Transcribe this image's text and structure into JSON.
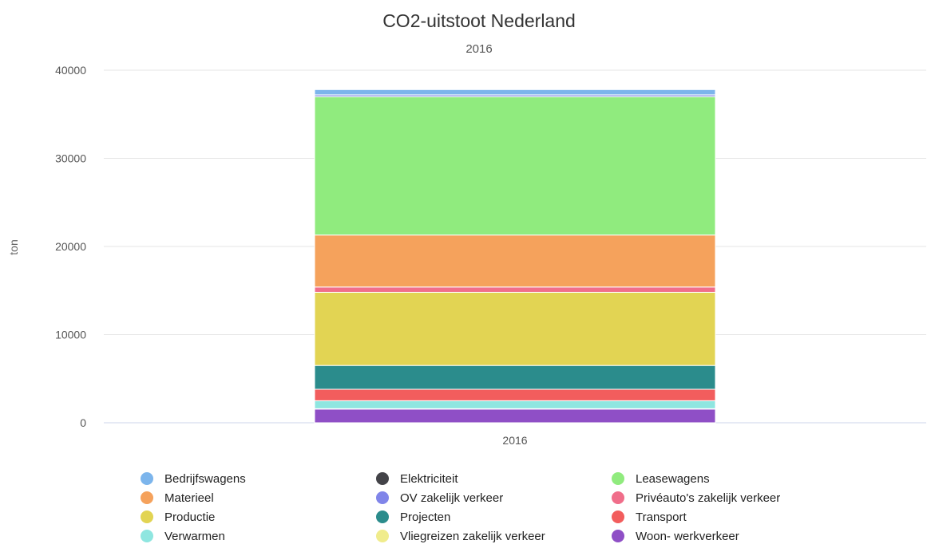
{
  "chart_data": {
    "type": "bar",
    "stacked": true,
    "title": "CO2-uitstoot Nederland",
    "subtitle": "2016",
    "ylabel": "ton",
    "ylim": [
      0,
      40000
    ],
    "yticks": [
      0,
      10000,
      20000,
      30000,
      40000
    ],
    "categories": [
      "2016"
    ],
    "legend_position": "bottom",
    "series": [
      {
        "name": "Woon- werkverkeer",
        "color": "#8f4fc6",
        "values": [
          1550
        ]
      },
      {
        "name": "Vliegreizen zakelijk verkeer",
        "color": "#f0ec8c",
        "values": [
          50
        ]
      },
      {
        "name": "Verwarmen",
        "color": "#8fe6e0",
        "values": [
          900
        ]
      },
      {
        "name": "Transport",
        "color": "#f25d5d",
        "values": [
          1300
        ]
      },
      {
        "name": "Projecten",
        "color": "#2b8c8c",
        "values": [
          2700
        ]
      },
      {
        "name": "Productie",
        "color": "#e2d453",
        "values": [
          8300
        ]
      },
      {
        "name": "Privéauto's zakelijk verkeer",
        "color": "#f06e8a",
        "values": [
          600
        ]
      },
      {
        "name": "Materieel",
        "color": "#f5a25c",
        "values": [
          5900
        ]
      },
      {
        "name": "Leasewagens",
        "color": "#90eb7e",
        "values": [
          15700
        ]
      },
      {
        "name": "Elektriciteit",
        "color": "#434348",
        "values": [
          0
        ]
      },
      {
        "name": "OV zakelijk verkeer",
        "color": "#8085e9",
        "values": [
          200
        ]
      },
      {
        "name": "Bedrijfswagens",
        "color": "#7cb5ec",
        "values": [
          600
        ]
      }
    ],
    "legend": [
      {
        "name": "Bedrijfswagens",
        "color": "#7cb5ec"
      },
      {
        "name": "Elektriciteit",
        "color": "#434348"
      },
      {
        "name": "Leasewagens",
        "color": "#90eb7e"
      },
      {
        "name": "Materieel",
        "color": "#f5a25c"
      },
      {
        "name": "OV zakelijk verkeer",
        "color": "#8085e9"
      },
      {
        "name": "Privéauto's zakelijk verkeer",
        "color": "#f06e8a"
      },
      {
        "name": "Productie",
        "color": "#e2d453"
      },
      {
        "name": "Projecten",
        "color": "#2b8c8c"
      },
      {
        "name": "Transport",
        "color": "#f25d5d"
      },
      {
        "name": "Verwarmen",
        "color": "#8fe6e0"
      },
      {
        "name": "Vliegreizen zakelijk verkeer",
        "color": "#f0ec8c"
      },
      {
        "name": "Woon- werkverkeer",
        "color": "#8f4fc6"
      }
    ]
  }
}
